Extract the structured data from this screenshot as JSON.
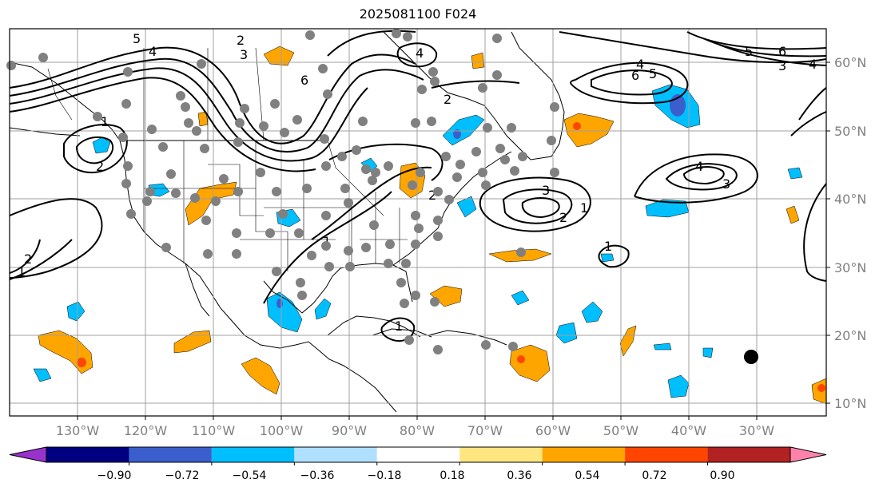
{
  "title": "2025081100 F024",
  "lon_labels": [
    "130°W",
    "120°W",
    "110°W",
    "100°W",
    "90°W",
    "80°W",
    "70°W",
    "60°W",
    "50°W",
    "40°W",
    "30°W"
  ],
  "lat_labels": [
    "60°N",
    "50°N",
    "40°N",
    "30°N",
    "20°N",
    "10°N"
  ],
  "colorbar": {
    "colors": [
      "#9932cc",
      "#000080",
      "#3a5fcd",
      "#00bfff",
      "#b0e0ff",
      "#ffffff",
      "#ffe680",
      "#ffa500",
      "#ff4500",
      "#b22222",
      "#ff82ab"
    ],
    "tick_labels": [
      "−0.90",
      "−0.72",
      "−0.54",
      "−0.36",
      "−0.18",
      "0.18",
      "0.36",
      "0.54",
      "0.72",
      "0.90"
    ]
  },
  "contour_labels": [
    "5",
    "4",
    "2",
    "3",
    "6",
    "2",
    "4",
    "1",
    "2",
    "1",
    "2",
    "3",
    "2",
    "1",
    "1",
    "4",
    "3",
    "6",
    "5",
    "4",
    "3",
    "6",
    "5",
    "4",
    "1",
    "2",
    "1"
  ],
  "colors": {
    "frame": "#000000",
    "grid": "#a0a0a0",
    "station_dot": "#808080",
    "positive": "#ffa500",
    "negative": "#00bfff"
  }
}
